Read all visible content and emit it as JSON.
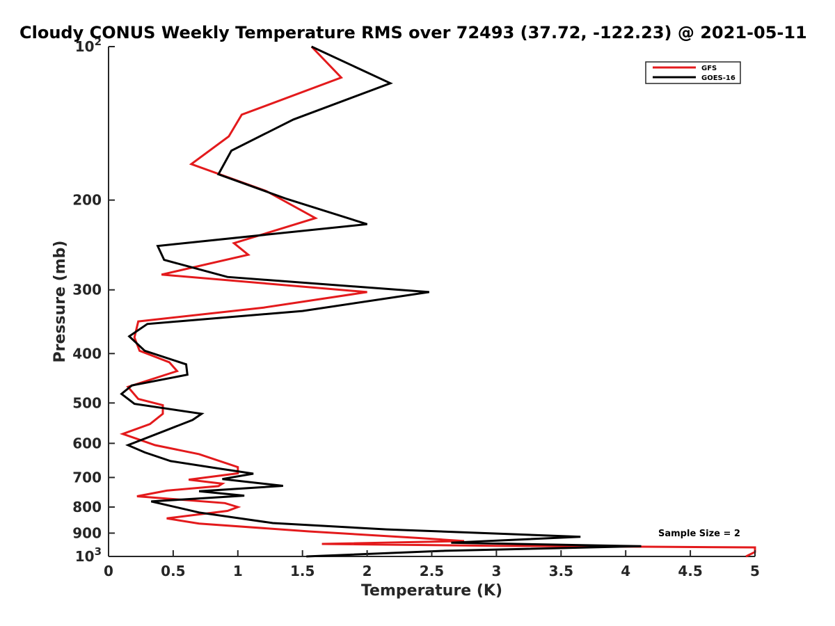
{
  "chart_data": {
    "type": "line",
    "title": "Cloudy CONUS Weekly Temperature RMS over 72493 (37.72, -122.23) @ 2021-05-11",
    "xlabel": "Temperature (K)",
    "ylabel": "Pressure (mb)",
    "xlim": [
      0,
      5
    ],
    "ylim": [
      100,
      1000
    ],
    "y_scale": "log",
    "y_reversed": true,
    "x_ticks": [
      "0",
      "0.5",
      "1",
      "1.5",
      "2",
      "2.5",
      "3",
      "3.5",
      "4",
      "4.5",
      "5"
    ],
    "y_ticks": [
      {
        "value": 100,
        "base": "10",
        "exp": "2"
      },
      {
        "value": 200,
        "label": "200"
      },
      {
        "value": 300,
        "label": "300"
      },
      {
        "value": 400,
        "label": "400"
      },
      {
        "value": 500,
        "label": "500"
      },
      {
        "value": 600,
        "label": "600"
      },
      {
        "value": 700,
        "label": "700"
      },
      {
        "value": 800,
        "label": "800"
      },
      {
        "value": 900,
        "label": "900"
      },
      {
        "value": 1000,
        "base": "10",
        "exp": "3"
      }
    ],
    "grid": false,
    "legend_position": "top-right",
    "annotation": "Sample Size = 2",
    "series": [
      {
        "name": "GFS",
        "color": "#e31a1c",
        "points": [
          [
            1.57,
            100
          ],
          [
            1.8,
            115
          ],
          [
            1.03,
            136
          ],
          [
            0.93,
            150
          ],
          [
            0.64,
            170
          ],
          [
            1.22,
            192
          ],
          [
            1.6,
            217
          ],
          [
            0.97,
            243
          ],
          [
            1.08,
            256
          ],
          [
            0.41,
            280
          ],
          [
            2.0,
            303
          ],
          [
            1.2,
            325
          ],
          [
            0.23,
            346
          ],
          [
            0.2,
            372
          ],
          [
            0.24,
            395
          ],
          [
            0.47,
            416
          ],
          [
            0.53,
            433
          ],
          [
            0.15,
            465
          ],
          [
            0.23,
            491
          ],
          [
            0.42,
            505
          ],
          [
            0.42,
            525
          ],
          [
            0.32,
            550
          ],
          [
            0.11,
            575
          ],
          [
            0.36,
            605
          ],
          [
            0.7,
            630
          ],
          [
            1.0,
            668
          ],
          [
            1.0,
            687
          ],
          [
            0.62,
            707
          ],
          [
            0.88,
            720
          ],
          [
            0.85,
            728
          ],
          [
            0.45,
            743
          ],
          [
            0.22,
            762
          ],
          [
            0.9,
            786
          ],
          [
            1.0,
            800
          ],
          [
            0.92,
            814
          ],
          [
            0.45,
            842
          ],
          [
            0.7,
            862
          ],
          [
            1.55,
            893
          ],
          [
            2.4,
            920
          ],
          [
            2.75,
            933
          ],
          [
            1.65,
            945
          ],
          [
            3.0,
            953
          ],
          [
            5.0,
            960
          ],
          [
            5.0,
            980
          ],
          [
            4.93,
            1000
          ]
        ]
      },
      {
        "name": "GOES-16",
        "color": "#000000",
        "points": [
          [
            1.57,
            100
          ],
          [
            2.18,
            118
          ],
          [
            1.43,
            139
          ],
          [
            0.95,
            160
          ],
          [
            0.85,
            178
          ],
          [
            1.38,
            199
          ],
          [
            2.0,
            223
          ],
          [
            0.38,
            246
          ],
          [
            0.43,
            262
          ],
          [
            0.92,
            283
          ],
          [
            2.48,
            303
          ],
          [
            1.5,
            330
          ],
          [
            0.3,
            350
          ],
          [
            0.16,
            370
          ],
          [
            0.28,
            395
          ],
          [
            0.6,
            420
          ],
          [
            0.61,
            440
          ],
          [
            0.18,
            462
          ],
          [
            0.1,
            480
          ],
          [
            0.2,
            502
          ],
          [
            0.72,
            525
          ],
          [
            0.65,
            540
          ],
          [
            0.45,
            565
          ],
          [
            0.15,
            605
          ],
          [
            0.28,
            625
          ],
          [
            0.48,
            650
          ],
          [
            0.85,
            672
          ],
          [
            1.12,
            688
          ],
          [
            0.88,
            705
          ],
          [
            1.35,
            727
          ],
          [
            0.7,
            745
          ],
          [
            1.05,
            760
          ],
          [
            0.33,
            780
          ],
          [
            0.7,
            820
          ],
          [
            1.27,
            860
          ],
          [
            2.15,
            885
          ],
          [
            3.65,
            915
          ],
          [
            2.65,
            940
          ],
          [
            4.12,
            955
          ],
          [
            2.6,
            975
          ],
          [
            1.53,
            1000
          ]
        ]
      }
    ]
  }
}
